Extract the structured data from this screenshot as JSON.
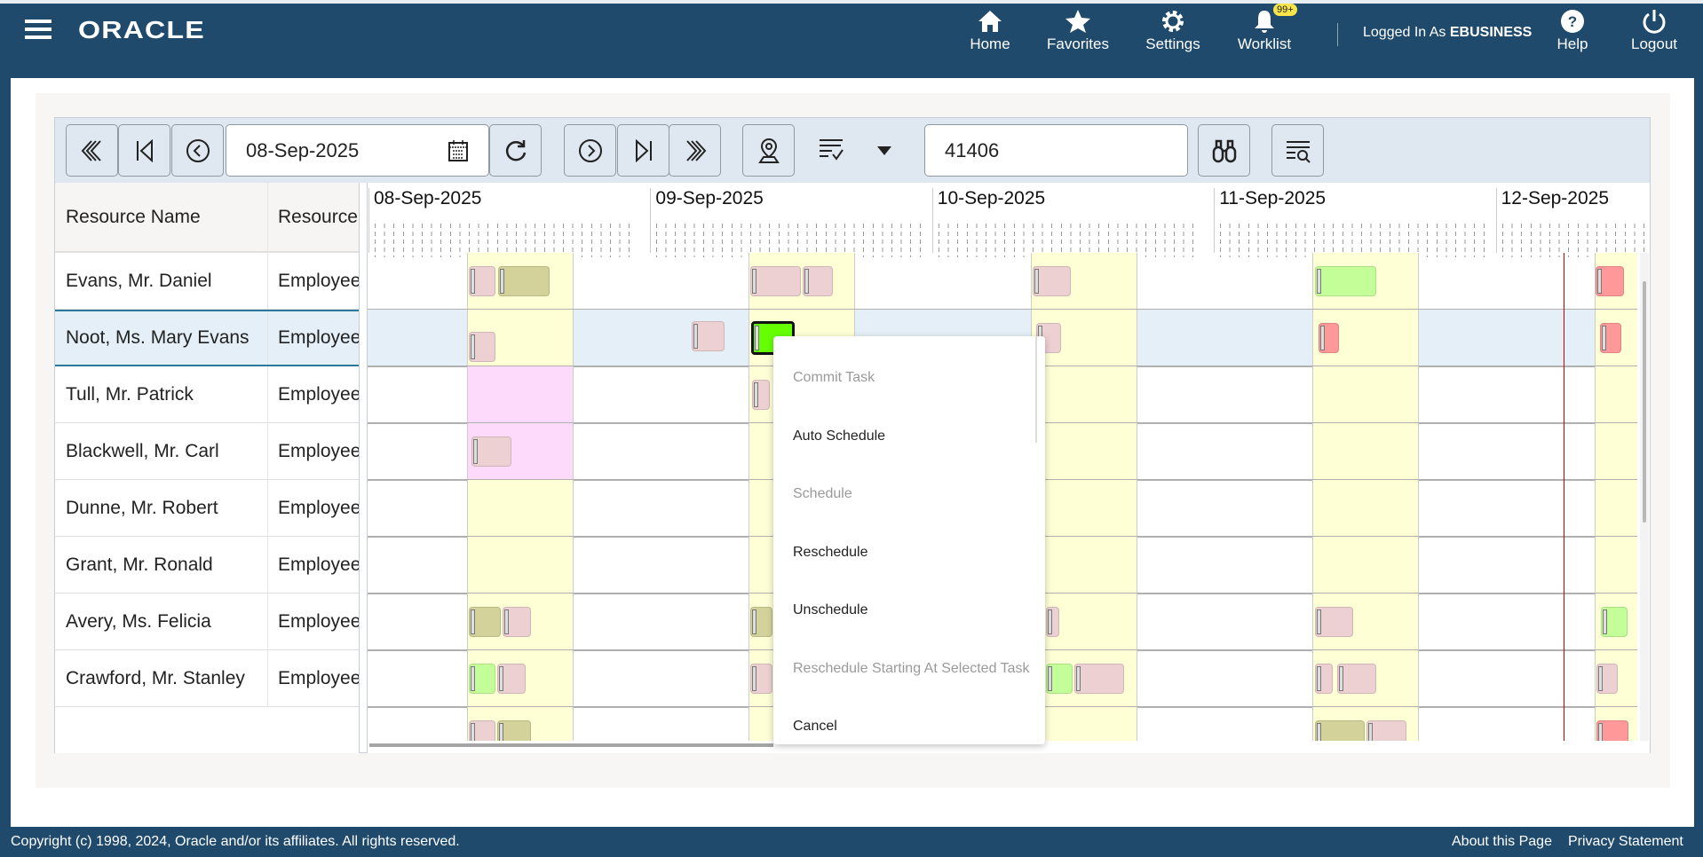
{
  "header": {
    "brand": "ORACLE",
    "nav": [
      {
        "label": "Home",
        "icon": "home-icon"
      },
      {
        "label": "Favorites",
        "icon": "star-icon"
      },
      {
        "label": "Settings",
        "icon": "gear-icon"
      },
      {
        "label": "Worklist",
        "icon": "bell-icon",
        "badge": "99+"
      }
    ],
    "logged_in_prefix": "Logged In As",
    "user": "EBUSINESS",
    "help": "Help",
    "logout": "Logout"
  },
  "toolbar": {
    "date_value": "08-Sep-2025",
    "search_value": "41406"
  },
  "table": {
    "columns": [
      "Resource Name",
      "Resource"
    ],
    "rows": [
      {
        "name": "Evans, Mr. Daniel",
        "type": "Employee"
      },
      {
        "name": "Noot, Ms. Mary Evans",
        "type": "Employee"
      },
      {
        "name": "Tull, Mr. Patrick",
        "type": "Employee"
      },
      {
        "name": "Blackwell, Mr. Carl",
        "type": "Employee"
      },
      {
        "name": "Dunne, Mr. Robert",
        "type": "Employee"
      },
      {
        "name": "Grant, Mr. Ronald",
        "type": "Employee"
      },
      {
        "name": "Avery, Ms. Felicia",
        "type": "Employee"
      },
      {
        "name": "Crawford, Mr. Stanley",
        "type": "Employee"
      }
    ],
    "selected_row": 1
  },
  "gantt": {
    "dates": [
      "08-Sep-2025",
      "09-Sep-2025",
      "10-Sep-2025",
      "11-Sep-2025",
      "12-Sep-2025"
    ]
  },
  "context_menu": {
    "items": [
      {
        "label": "Commit Task",
        "enabled": false
      },
      {
        "label": "Auto Schedule",
        "enabled": true
      },
      {
        "label": "Schedule",
        "enabled": false
      },
      {
        "label": "Reschedule",
        "enabled": true
      },
      {
        "label": "Unschedule",
        "enabled": true
      },
      {
        "label": "Reschedule Starting At Selected Task",
        "enabled": false
      },
      {
        "label": "Cancel",
        "enabled": true
      }
    ]
  },
  "footer": {
    "copyright": "Copyright (c) 1998, 2024, Oracle and/or its affiliates. All rights reserved.",
    "about": "About this Page",
    "privacy": "Privacy Statement"
  },
  "colors": {
    "header_bg": "#1f4a6c",
    "shift_yellow": "#ffffd6",
    "task_pink": "#ecd0d2",
    "task_green": "#c3fe99",
    "task_red": "#ff9898",
    "task_olive": "#d2d29a",
    "selected_task": "#66ff00",
    "current_time_line": "#d40000"
  }
}
